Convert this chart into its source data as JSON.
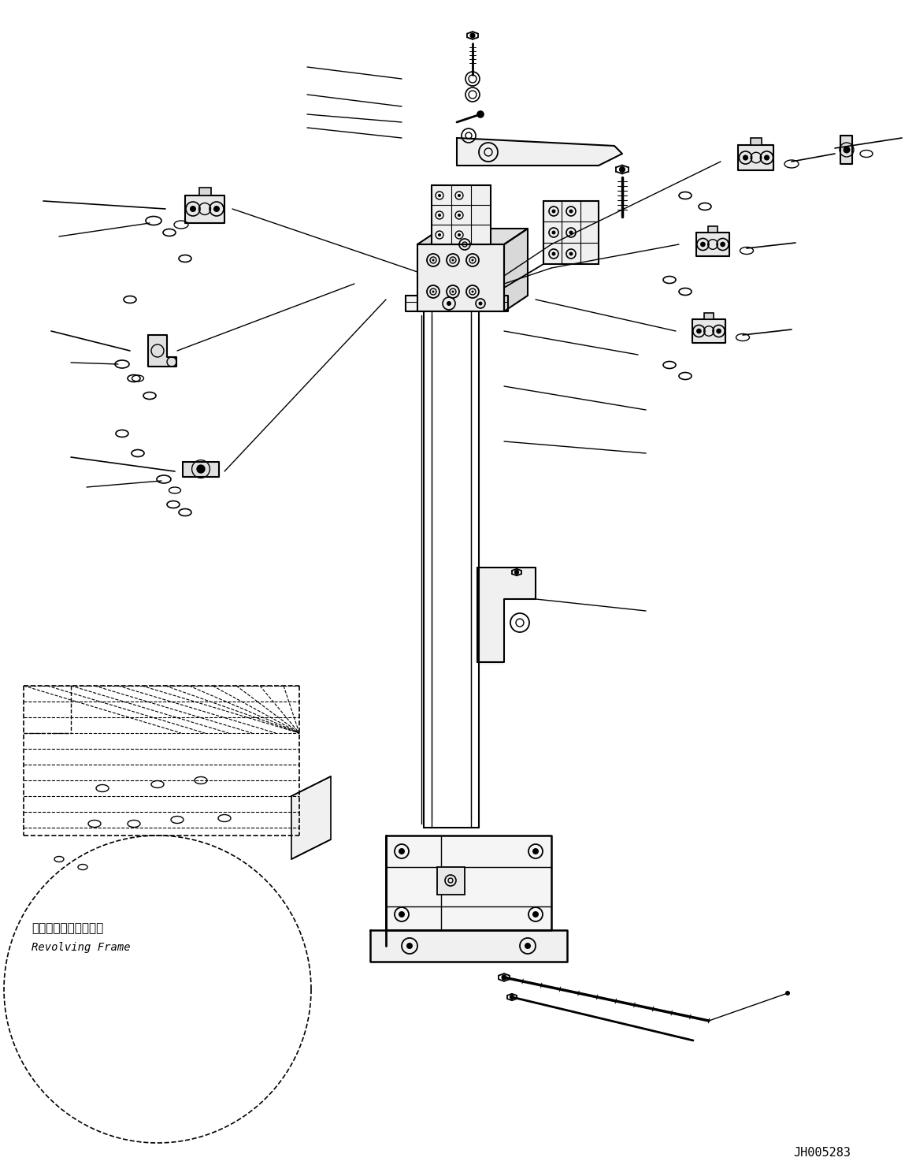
{
  "bg_color": "#ffffff",
  "line_color": "#000000",
  "fig_width": 11.63,
  "fig_height": 14.78,
  "dpi": 100,
  "part_code": "JH005283",
  "revolving_frame_jp": "レボルビングフレーム",
  "revolving_frame_en": "Revolving Frame"
}
